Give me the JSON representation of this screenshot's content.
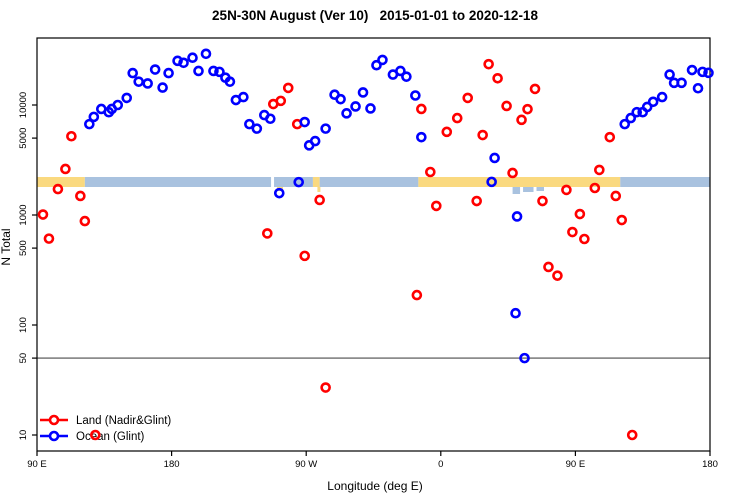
{
  "title": "25N-30N August (Ver 10)   2015-01-01 to 2020-12-18",
  "axes": {
    "x": {
      "label": "Longitude (deg E)",
      "ticks": [
        {
          "lon": 90,
          "label": "90 E"
        },
        {
          "lon": 180,
          "label": "180"
        },
        {
          "lon": 270,
          "label": "90 W"
        },
        {
          "lon": 360,
          "label": "0"
        },
        {
          "lon": 450,
          "label": "90 E"
        },
        {
          "lon": 540,
          "label": "180"
        }
      ]
    },
    "y": {
      "label": "N Total",
      "scale": "log10",
      "ticks": [
        {
          "value": 10000,
          "label": "10000"
        },
        {
          "value": 5000,
          "label": "5000"
        },
        {
          "value": 1000,
          "label": "1000"
        },
        {
          "value": 500,
          "label": "500"
        },
        {
          "value": 100,
          "label": "100"
        },
        {
          "value": 50,
          "label": "50"
        },
        {
          "value": 10,
          "label": "10"
        }
      ]
    }
  },
  "reference_line": {
    "value": 50,
    "color": "#8C8C8C"
  },
  "land_ocean_strip": {
    "colors": {
      "land": "#FAD97F",
      "ocean": "#A9C2DF"
    },
    "segments": [
      {
        "from": 90,
        "to": 122,
        "type": "land"
      },
      {
        "from": 122,
        "to": 246.5,
        "type": "ocean"
      },
      {
        "from": 248.5,
        "to": 274.5,
        "type": "ocean"
      },
      {
        "from": 274.5,
        "to": 279,
        "type": "land"
      },
      {
        "from": 279,
        "to": 345,
        "type": "ocean"
      },
      {
        "from": 345,
        "to": 480,
        "type": "land"
      },
      {
        "from": 480,
        "to": 540,
        "type": "ocean"
      }
    ],
    "fringes": [
      {
        "from": 250.5,
        "to": 254.5,
        "type": "land",
        "depth": 4
      },
      {
        "from": 277.5,
        "to": 279.5,
        "type": "land",
        "depth": 5
      },
      {
        "from": 408,
        "to": 413,
        "type": "ocean",
        "depth": 7
      },
      {
        "from": 415,
        "to": 422,
        "type": "ocean",
        "depth": 5
      },
      {
        "from": 424,
        "to": 429,
        "type": "ocean",
        "depth": 4
      }
    ]
  },
  "legend": [
    {
      "label": "Land (Nadir&Glint)",
      "color": "#FF0000"
    },
    {
      "label": "Ocean (Glint)",
      "color": "#0000FF"
    }
  ],
  "chart_data": {
    "type": "scatter",
    "title": "25N-30N August (Ver 10)   2015-01-01 to 2020-12-18",
    "xlabel": "Longitude (deg E)",
    "ylabel": "N Total",
    "y_scale": "log10",
    "x_note": "longitude axis wraps eastward: 90E,180,90W,0,90E,180 (stored as 90..540)",
    "xlim": [
      90,
      540
    ],
    "ylim": [
      8,
      41000
    ],
    "series": [
      {
        "name": "Land (Nadir&Glint)",
        "color": "#FF0000",
        "points": [
          [
            94,
            1010
          ],
          [
            98,
            610
          ],
          [
            104,
            1720
          ],
          [
            109,
            2620
          ],
          [
            113,
            5200
          ],
          [
            119,
            1490
          ],
          [
            122,
            880
          ],
          [
            129,
            10
          ],
          [
            244,
            680
          ],
          [
            248,
            10200
          ],
          [
            253,
            10900
          ],
          [
            258,
            14300
          ],
          [
            264,
            6700
          ],
          [
            269,
            425
          ],
          [
            279,
            1370
          ],
          [
            283,
            27
          ],
          [
            344,
            187
          ],
          [
            347,
            9200
          ],
          [
            353,
            2460
          ],
          [
            357,
            1210
          ],
          [
            364,
            5700
          ],
          [
            371,
            7600
          ],
          [
            378,
            11600
          ],
          [
            384,
            1340
          ],
          [
            388,
            5330
          ],
          [
            392,
            23500
          ],
          [
            398,
            17500
          ],
          [
            404,
            9800
          ],
          [
            408,
            2410
          ],
          [
            414,
            7330
          ],
          [
            418,
            9170
          ],
          [
            423,
            14000
          ],
          [
            428,
            1340
          ],
          [
            432,
            337
          ],
          [
            438,
            281
          ],
          [
            444,
            1690
          ],
          [
            448,
            700
          ],
          [
            453,
            1020
          ],
          [
            456,
            605
          ],
          [
            463,
            1760
          ],
          [
            466,
            2570
          ],
          [
            473,
            5100
          ],
          [
            477,
            1490
          ],
          [
            481,
            900
          ],
          [
            488,
            10
          ]
        ]
      },
      {
        "name": "Ocean (Glint)",
        "color": "#0000FF",
        "points": [
          [
            125,
            6700
          ],
          [
            128,
            7800
          ],
          [
            133,
            9200
          ],
          [
            138,
            8600
          ],
          [
            140,
            9200
          ],
          [
            144,
            10000
          ],
          [
            150,
            11600
          ],
          [
            154,
            19500
          ],
          [
            158,
            16300
          ],
          [
            164,
            15700
          ],
          [
            169,
            21000
          ],
          [
            174,
            14400
          ],
          [
            178,
            19500
          ],
          [
            184,
            25200
          ],
          [
            188,
            24200
          ],
          [
            194,
            26900
          ],
          [
            198,
            20400
          ],
          [
            203,
            29200
          ],
          [
            208,
            20400
          ],
          [
            212,
            20000
          ],
          [
            216,
            17700
          ],
          [
            219,
            16300
          ],
          [
            223,
            11100
          ],
          [
            228,
            11800
          ],
          [
            232,
            6700
          ],
          [
            237,
            6100
          ],
          [
            242,
            8100
          ],
          [
            246,
            7500
          ],
          [
            252,
            1580
          ],
          [
            265,
            1990
          ],
          [
            269,
            7000
          ],
          [
            272,
            4300
          ],
          [
            276,
            4700
          ],
          [
            283,
            6100
          ],
          [
            289,
            12400
          ],
          [
            293,
            11300
          ],
          [
            297,
            8400
          ],
          [
            303,
            9700
          ],
          [
            308,
            13000
          ],
          [
            313,
            9300
          ],
          [
            317,
            23000
          ],
          [
            321,
            25700
          ],
          [
            328,
            18900
          ],
          [
            333,
            20400
          ],
          [
            337,
            18100
          ],
          [
            343,
            12200
          ],
          [
            347,
            5100
          ],
          [
            394,
            2000
          ],
          [
            396,
            3300
          ],
          [
            410,
            128
          ],
          [
            411,
            970
          ],
          [
            416,
            50
          ],
          [
            483,
            6700
          ],
          [
            487,
            7600
          ],
          [
            491,
            8600
          ],
          [
            495,
            8600
          ],
          [
            498,
            9600
          ],
          [
            502,
            10700
          ],
          [
            508,
            11800
          ],
          [
            513,
            18900
          ],
          [
            516,
            15900
          ],
          [
            521,
            15900
          ],
          [
            528,
            20800
          ],
          [
            532,
            14200
          ],
          [
            535,
            20000
          ],
          [
            539,
            19600
          ]
        ]
      }
    ]
  }
}
